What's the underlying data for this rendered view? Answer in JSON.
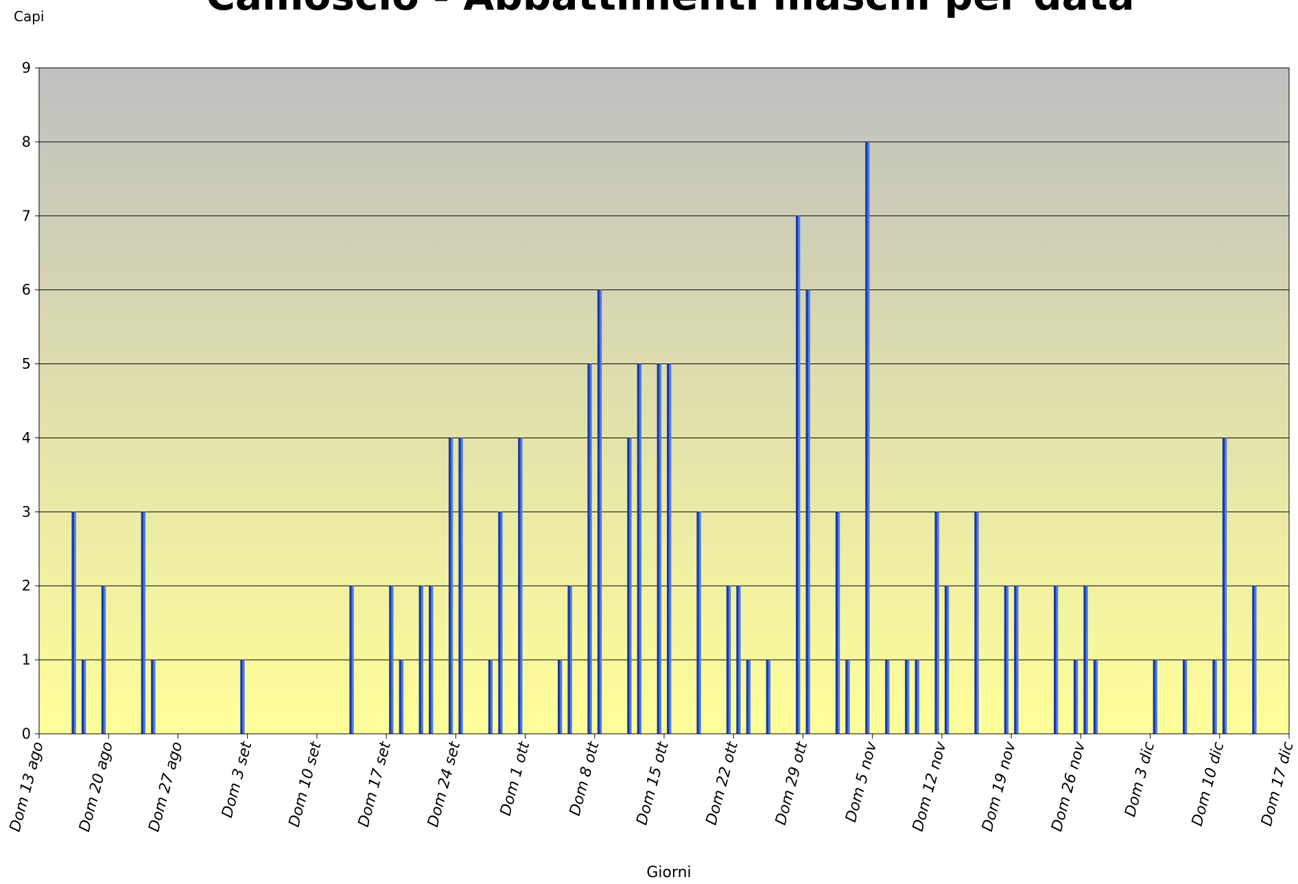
{
  "chart_data": {
    "type": "bar",
    "title": "Camoscio - Abbattimenti maschi per data",
    "y_axis_label": "Capi",
    "x_axis_label": "Giorni",
    "categories": [
      "Dom 13 ago",
      null,
      null,
      null,
      null,
      null,
      null,
      "Dom 20 ago",
      null,
      null,
      null,
      null,
      null,
      null,
      "Dom 27 ago",
      null,
      null,
      null,
      null,
      null,
      null,
      "Dom 3 set",
      null,
      null,
      null,
      null,
      null,
      null,
      "Dom 10 set",
      null,
      null,
      null,
      null,
      null,
      null,
      "Dom 17 set",
      null,
      null,
      null,
      null,
      null,
      null,
      "Dom 24 set",
      null,
      null,
      null,
      null,
      null,
      null,
      "Dom 1 ott",
      null,
      null,
      null,
      null,
      null,
      null,
      "Dom 8 ott",
      null,
      null,
      null,
      null,
      null,
      null,
      "Dom 15 ott",
      null,
      null,
      null,
      null,
      null,
      null,
      "Dom 22 ott",
      null,
      null,
      null,
      null,
      null,
      null,
      "Dom 29 ott",
      null,
      null,
      null,
      null,
      null,
      null,
      "Dom 5 nov",
      null,
      null,
      null,
      null,
      null,
      null,
      "Dom 12 nov",
      null,
      null,
      null,
      null,
      null,
      null,
      "Dom 19 nov",
      null,
      null,
      null,
      null,
      null,
      null,
      "Dom 26 nov",
      null,
      null,
      null,
      null,
      null,
      null,
      "Dom 3 dic",
      null,
      null,
      null,
      null,
      null,
      null,
      "Dom 10 dic",
      null,
      null,
      null,
      null,
      null,
      null,
      "Dom 17 dic"
    ],
    "values": [
      0,
      0,
      0,
      3,
      1,
      0,
      2,
      0,
      0,
      0,
      3,
      1,
      0,
      0,
      0,
      0,
      0,
      0,
      0,
      0,
      1,
      0,
      0,
      0,
      0,
      0,
      0,
      0,
      0,
      0,
      0,
      2,
      0,
      0,
      0,
      2,
      1,
      0,
      2,
      2,
      0,
      4,
      4,
      0,
      0,
      1,
      3,
      0,
      4,
      0,
      0,
      0,
      1,
      2,
      0,
      5,
      6,
      0,
      0,
      4,
      5,
      0,
      5,
      5,
      0,
      0,
      3,
      0,
      0,
      2,
      2,
      1,
      0,
      1,
      0,
      0,
      7,
      6,
      0,
      0,
      3,
      1,
      0,
      8,
      0,
      1,
      0,
      1,
      1,
      0,
      3,
      2,
      0,
      0,
      3,
      0,
      0,
      2,
      2,
      0,
      0,
      0,
      2,
      0,
      1,
      2,
      1,
      0,
      0,
      0,
      0,
      0,
      1,
      0,
      0,
      1,
      0,
      0,
      1,
      4,
      0,
      0,
      2,
      0,
      0,
      0,
      null
    ],
    "ylim": [
      0,
      9
    ],
    "yticks": [
      0,
      1,
      2,
      3,
      4,
      5,
      6,
      7,
      8,
      9
    ],
    "grid": true,
    "background": [
      "#c0c0c0",
      "#ffff99"
    ],
    "color": [
      "#1f3a8a",
      "#4a78ff"
    ]
  }
}
